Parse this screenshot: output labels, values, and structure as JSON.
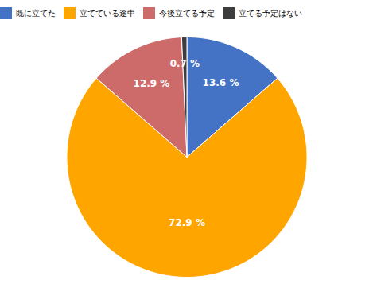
{
  "chart_data": {
    "type": "pie",
    "categories": [
      "既に立てた",
      "立てている途中",
      "今後立てる予定",
      "立てる予定はない"
    ],
    "values": [
      13.6,
      72.9,
      12.9,
      0.7
    ],
    "value_labels": [
      "13.6 %",
      "72.9 %",
      "12.9 %",
      "0.7 %"
    ],
    "colors": [
      "#4472C4",
      "#FFA500",
      "#CD6B6B",
      "#3D3D3D"
    ],
    "data_labels": true,
    "legend": "top"
  }
}
